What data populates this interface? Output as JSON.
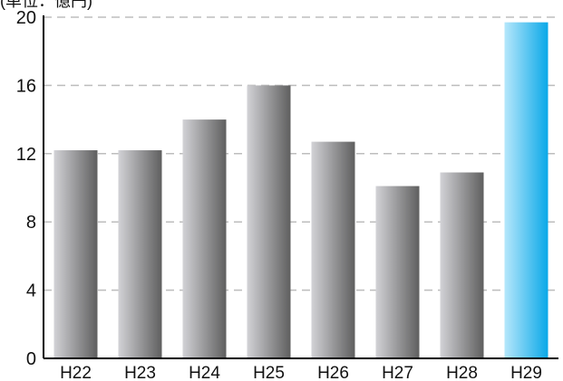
{
  "chart_data": {
    "type": "bar",
    "unit_label": "(単位：億円)",
    "categories": [
      "H22",
      "H23",
      "H24",
      "H25",
      "H26",
      "H27",
      "H28",
      "H29"
    ],
    "values": [
      12.2,
      12.2,
      14.0,
      16.0,
      12.7,
      10.1,
      10.9,
      19.7
    ],
    "highlight_category": "H29",
    "ylim": [
      0,
      20
    ],
    "yticks": [
      "0",
      "4",
      "8",
      "12",
      "16",
      "20"
    ],
    "grid": "dashed horizontal",
    "colors": {
      "bar_dark": "#5f5f5f",
      "bar_light": "#d2d2d6",
      "highlight_dark": "#0aa8e8",
      "highlight_light": "#b6e7fb",
      "axis": "#000000",
      "grid": "#bdbdbd"
    }
  }
}
